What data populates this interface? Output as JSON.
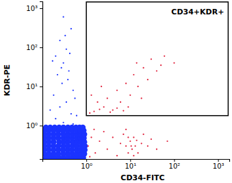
{
  "chart_data": {
    "type": "scatter",
    "x_label": "CD34-FITC",
    "y_label": "KDR-PE",
    "log": true,
    "marker": "circle",
    "xlim": [
      0.1,
      1800
    ],
    "ylim": [
      0.14,
      1500
    ],
    "xticks": [
      {
        "value": 1,
        "label": "10⁰"
      },
      {
        "value": 10,
        "label": "10¹"
      },
      {
        "value": 100,
        "label": "10²"
      },
      {
        "value": 1000,
        "label": "10³"
      }
    ],
    "yticks": [
      {
        "value": 1,
        "label": "10⁰"
      },
      {
        "value": 10,
        "label": "10¹"
      },
      {
        "value": 100,
        "label": "10²"
      },
      {
        "value": 1000,
        "label": "10³"
      }
    ],
    "gate": {
      "label": "CD34+KDR+",
      "x": [
        1,
        1700
      ],
      "y": [
        1.8,
        1450
      ]
    },
    "series": [
      {
        "color": "#1a33ff",
        "x": [
          0.12,
          0.15,
          0.19,
          0.24,
          0.3,
          0.38,
          0.47,
          0.58,
          0.72,
          0.85,
          0.11,
          0.14,
          0.18,
          0.23,
          0.3,
          0.38,
          0.48,
          0.6,
          0.75,
          0.9,
          0.11,
          0.14,
          0.18,
          0.23,
          0.29,
          0.37,
          0.47,
          0.6,
          0.74,
          0.92,
          0.11,
          0.14,
          0.18,
          0.23,
          0.3,
          0.38,
          0.48,
          0.6,
          0.76,
          0.93,
          0.11,
          0.14,
          0.18,
          0.24,
          0.3,
          0.38,
          0.49,
          0.61,
          0.75,
          0.9,
          0.11,
          0.14,
          0.18,
          0.23,
          0.3,
          0.37,
          0.47,
          0.6,
          0.74,
          0.88,
          0.11,
          0.14,
          0.18,
          0.23,
          0.3,
          0.38,
          0.48,
          0.6,
          0.75,
          0.9,
          0.11,
          0.14,
          0.18,
          0.23,
          0.29,
          0.37,
          0.47,
          0.59,
          0.73,
          0.87,
          0.12,
          0.15,
          0.19,
          0.24,
          0.3,
          0.38,
          0.47,
          0.58,
          0.7,
          0.83,
          0.3,
          0.2,
          0.45,
          0.25,
          0.35,
          0.18,
          0.5,
          0.28,
          0.22,
          0.4,
          0.3,
          0.2,
          0.35,
          0.25,
          0.45,
          0.3,
          0.5,
          0.6,
          0.15,
          0.38,
          0.27,
          0.17,
          0.42,
          0.33,
          0.55
        ],
        "y": [
          0.15,
          0.15,
          0.15,
          0.15,
          0.15,
          0.15,
          0.15,
          0.15,
          0.15,
          0.15,
          0.19,
          0.19,
          0.19,
          0.19,
          0.19,
          0.19,
          0.19,
          0.19,
          0.19,
          0.19,
          0.24,
          0.24,
          0.24,
          0.24,
          0.24,
          0.24,
          0.24,
          0.24,
          0.24,
          0.24,
          0.3,
          0.3,
          0.3,
          0.3,
          0.3,
          0.3,
          0.3,
          0.3,
          0.3,
          0.3,
          0.38,
          0.38,
          0.38,
          0.38,
          0.38,
          0.38,
          0.38,
          0.38,
          0.38,
          0.38,
          0.48,
          0.48,
          0.48,
          0.48,
          0.48,
          0.48,
          0.48,
          0.48,
          0.48,
          0.48,
          0.6,
          0.6,
          0.6,
          0.6,
          0.6,
          0.6,
          0.6,
          0.6,
          0.6,
          0.6,
          0.75,
          0.75,
          0.75,
          0.75,
          0.75,
          0.75,
          0.75,
          0.75,
          0.75,
          0.75,
          0.9,
          0.9,
          0.9,
          0.9,
          0.9,
          0.9,
          0.9,
          0.9,
          0.9,
          0.9,
          1.2,
          1.5,
          2,
          3,
          4,
          6,
          8,
          12,
          20,
          25,
          40,
          60,
          90,
          150,
          300,
          600,
          1.1,
          1.8,
          2.5,
          15,
          30,
          45,
          70,
          200,
          5
        ]
      },
      {
        "color": "#e0203a",
        "x": [
          1.2,
          1.5,
          2,
          2.5,
          3,
          4,
          5,
          6,
          8,
          10,
          12,
          15,
          20,
          25,
          30,
          40,
          1.8,
          3.5,
          7,
          9,
          14,
          18,
          50,
          2.2,
          1.3,
          60,
          100,
          5,
          1.1,
          1.3,
          1.6,
          2,
          2.5,
          3,
          4,
          5,
          6,
          7,
          8,
          9,
          10,
          11,
          12,
          13,
          15,
          18,
          20,
          25,
          30,
          40,
          70,
          1.2,
          9,
          10.5,
          12,
          14,
          1.5,
          8
        ],
        "y": [
          2.1,
          2.3,
          2.6,
          3,
          5,
          2.5,
          8,
          4,
          12,
          6,
          20,
          10,
          30,
          15,
          50,
          25,
          4,
          2.2,
          2.4,
          3,
          40,
          5,
          35,
          10,
          6,
          60,
          40,
          2.8,
          0.3,
          0.5,
          0.2,
          0.4,
          0.7,
          0.25,
          0.5,
          0.17,
          0.35,
          0.6,
          0.3,
          0.2,
          0.4,
          0.25,
          0.5,
          0.3,
          0.2,
          0.35,
          0.6,
          0.3,
          0.45,
          0.25,
          0.4,
          0.16,
          0.5,
          0.3,
          0.17,
          0.42,
          0.8,
          0.8
        ]
      }
    ]
  }
}
